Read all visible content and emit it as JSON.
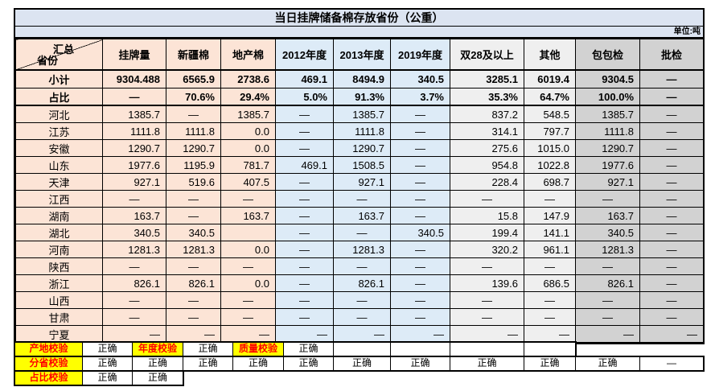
{
  "title": "当日挂牌储备棉存放省份（公重）",
  "unit_label": "单位:吨",
  "colors": {
    "peach": "#fce4d6",
    "blue": "#ddebf7",
    "light_gray": "#efefef",
    "gray": "#d2d2d2",
    "title_bg": "#dce4f1",
    "yellow": "#ffff00",
    "check_label_text": "#ff0000"
  },
  "table": {
    "corner": {
      "top": "汇总",
      "bottom": "省份"
    },
    "columns": [
      "挂牌量",
      "新疆棉",
      "地产棉",
      "2012年度",
      "2013年度",
      "2019年度",
      "双28及以上",
      "其他",
      "包包检",
      "批检"
    ],
    "rows": [
      {
        "label": "小计",
        "bold": true,
        "cells": [
          "9304.488",
          "6565.9",
          "2738.6",
          "469.1",
          "8494.9",
          "340.5",
          "3285.1",
          "6019.4",
          "9304.5",
          "—"
        ]
      },
      {
        "label": "占比",
        "bold": true,
        "thick_bottom": true,
        "cells": [
          "—",
          "70.6%",
          "29.4%",
          "5.0%",
          "91.3%",
          "3.7%",
          "35.3%",
          "64.7%",
          "100.0%",
          "—"
        ]
      },
      {
        "label": "河北",
        "cells": [
          "1385.7",
          "—",
          "1385.7",
          "—",
          "1385.7",
          "—",
          "837.2",
          "548.5",
          "1385.7",
          "—"
        ]
      },
      {
        "label": "江苏",
        "cells": [
          "1111.8",
          "1111.8",
          "0.0",
          "—",
          "1111.8",
          "—",
          "314.1",
          "797.7",
          "1111.8",
          "—"
        ]
      },
      {
        "label": "安徽",
        "cells": [
          "1290.7",
          "1290.7",
          "0.0",
          "—",
          "1290.7",
          "—",
          "275.6",
          "1015.0",
          "1290.7",
          "—"
        ]
      },
      {
        "label": "山东",
        "cells": [
          "1977.6",
          "1195.9",
          "781.7",
          "469.1",
          "1508.5",
          "—",
          "954.8",
          "1022.8",
          "1977.6",
          "—"
        ]
      },
      {
        "label": "天津",
        "cells": [
          "927.1",
          "519.6",
          "407.5",
          "—",
          "927.1",
          "—",
          "228.4",
          "698.7",
          "927.1",
          "—"
        ]
      },
      {
        "label": "江西",
        "cells": [
          "—",
          "—",
          "—",
          "—",
          "—",
          "—",
          "—",
          "—",
          "—",
          "—"
        ]
      },
      {
        "label": "湖南",
        "cells": [
          "163.7",
          "—",
          "163.7",
          "—",
          "163.7",
          "—",
          "15.8",
          "147.9",
          "163.7",
          "—"
        ]
      },
      {
        "label": "湖北",
        "cells": [
          "340.5",
          "340.5",
          "",
          "—",
          "—",
          "340.5",
          "199.4",
          "141.1",
          "340.5",
          "—"
        ]
      },
      {
        "label": "河南",
        "cells": [
          "1281.3",
          "1281.3",
          "0.0",
          "—",
          "1281.3",
          "—",
          "320.2",
          "961.1",
          "1281.3",
          "—"
        ]
      },
      {
        "label": "陕西",
        "cells": [
          "—",
          "—",
          "—",
          "—",
          "—",
          "—",
          "—",
          "—",
          "—",
          "—"
        ]
      },
      {
        "label": "浙江",
        "cells": [
          "826.1",
          "826.1",
          "0.0",
          "—",
          "826.1",
          "—",
          "139.6",
          "686.5",
          "826.1",
          "—"
        ]
      },
      {
        "label": "山西",
        "cells": [
          "—",
          "—",
          "—",
          "—",
          "—",
          "—",
          "—",
          "—",
          "—",
          "—"
        ]
      },
      {
        "label": "甘肃",
        "cells": [
          "—",
          "—",
          "—",
          "—",
          "—",
          "—",
          "—",
          "—",
          "—",
          "—"
        ]
      },
      {
        "label": "宁夏",
        "dash_right": true,
        "cells": [
          "—",
          "—",
          "—",
          "—",
          "—",
          "—",
          "—",
          "—",
          "—",
          "—"
        ]
      }
    ]
  },
  "checks": {
    "rows": [
      {
        "name": "origin-check",
        "cells": [
          {
            "t": "产地校验",
            "label": true
          },
          {
            "t": "正确"
          },
          {
            "t": "年度校验",
            "label": true
          },
          {
            "t": "正确"
          },
          {
            "t": "质量校验",
            "label": true
          },
          {
            "t": "正确"
          },
          {
            "t": ""
          },
          {
            "t": ""
          },
          {
            "t": ""
          },
          {
            "t": ""
          }
        ]
      },
      {
        "name": "province-check",
        "cells": [
          {
            "t": "分省校验",
            "label": true
          },
          {
            "t": "正确"
          },
          {
            "t": "正确"
          },
          {
            "t": "正确"
          },
          {
            "t": "正确"
          },
          {
            "t": "正确"
          },
          {
            "t": "正确"
          },
          {
            "t": "正确"
          },
          {
            "t": "正确"
          },
          {
            "t": "正确"
          },
          {
            "t": "正确"
          },
          {
            "t": "—"
          }
        ]
      },
      {
        "name": "ratio-check",
        "cells": [
          {
            "t": "占比校验",
            "label": true
          },
          {
            "t": "正确"
          },
          {
            "t": "正确"
          }
        ]
      }
    ]
  }
}
